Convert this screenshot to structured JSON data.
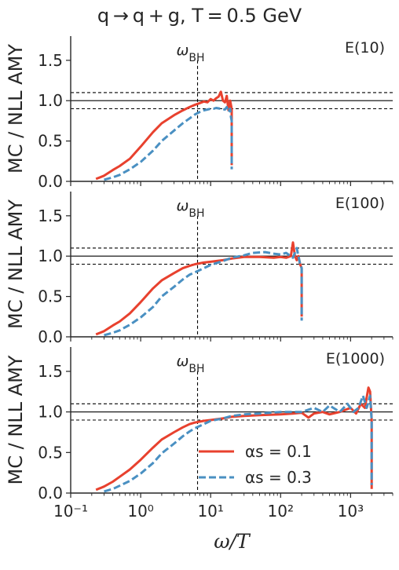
{
  "figure_title": "q → q + g, T = 0.5 GeV",
  "colors": {
    "alpha_0_1": "#e8412e",
    "alpha_0_3": "#4a90c2",
    "axis": "#262626"
  },
  "chart_data": [
    {
      "type": "line",
      "panel_label": "E(10)",
      "vline_label": "ωBH",
      "ylabel": "MC / NLL AMY",
      "xlabel": "",
      "xscale": "log",
      "xlim": [
        0.1,
        4000
      ],
      "ylim": [
        0,
        1.8
      ],
      "yticks": [
        "0.0",
        "0.5",
        "1.0",
        "1.5"
      ],
      "xticks": [],
      "vline_x": 6.5,
      "hlines_solid": [
        1.0
      ],
      "hlines_dashed": [
        0.9,
        1.1
      ],
      "series": [
        {
          "name": "αs = 0.1",
          "style": "solid",
          "x": [
            0.23,
            0.3,
            0.4,
            0.5,
            0.7,
            1.0,
            1.5,
            2.0,
            3.0,
            4.0,
            5.0,
            6.0,
            7.0,
            8.0,
            9.0,
            10.0,
            11.0,
            12.0,
            13.0,
            14.0,
            15.0,
            16.0,
            17.0,
            18.0,
            19.0,
            19.5,
            20.0,
            20.0
          ],
          "y": [
            0.03,
            0.07,
            0.14,
            0.19,
            0.28,
            0.43,
            0.61,
            0.72,
            0.82,
            0.88,
            0.92,
            0.95,
            0.97,
            0.99,
            0.98,
            1.02,
            1.0,
            1.03,
            1.05,
            1.11,
            1.0,
            0.98,
            1.06,
            0.88,
            1.0,
            0.95,
            0.9,
            0.2
          ]
        },
        {
          "name": "αs = 0.3",
          "style": "dashed",
          "x": [
            0.3,
            0.4,
            0.5,
            0.7,
            1.0,
            1.5,
            2.0,
            3.0,
            4.0,
            5.0,
            6.0,
            7.0,
            8.0,
            9.0,
            10.0,
            11.0,
            12.0,
            14.0,
            16.0,
            17.0,
            18.0,
            19.0,
            19.5,
            20.0,
            20.0
          ],
          "y": [
            0.02,
            0.05,
            0.08,
            0.15,
            0.24,
            0.38,
            0.5,
            0.63,
            0.72,
            0.78,
            0.83,
            0.86,
            0.88,
            0.89,
            0.9,
            0.9,
            0.91,
            0.9,
            0.89,
            0.92,
            0.86,
            0.9,
            0.8,
            0.75,
            0.15
          ]
        }
      ]
    },
    {
      "type": "line",
      "panel_label": "E(100)",
      "vline_label": "ωBH",
      "ylabel": "MC / NLL AMY",
      "xlabel": "",
      "xscale": "log",
      "xlim": [
        0.1,
        4000
      ],
      "ylim": [
        0,
        1.8
      ],
      "yticks": [
        "0.0",
        "0.5",
        "1.0",
        "1.5"
      ],
      "xticks": [],
      "vline_x": 6.5,
      "hlines_solid": [
        1.0
      ],
      "hlines_dashed": [
        0.9,
        1.1
      ],
      "series": [
        {
          "name": "αs = 0.1",
          "style": "solid",
          "x": [
            0.23,
            0.3,
            0.4,
            0.5,
            0.7,
            1.0,
            1.5,
            2.0,
            3.0,
            4.0,
            5.0,
            6.0,
            8.0,
            10.0,
            15.0,
            20.0,
            30.0,
            50.0,
            80.0,
            100.0,
            120.0,
            140.0,
            150.0,
            160.0,
            170.0,
            180.0,
            190.0,
            200.0,
            200.0
          ],
          "y": [
            0.03,
            0.07,
            0.14,
            0.19,
            0.29,
            0.43,
            0.6,
            0.7,
            0.79,
            0.85,
            0.88,
            0.9,
            0.92,
            0.93,
            0.95,
            0.97,
            0.99,
            0.99,
            0.98,
            0.99,
            0.98,
            1.0,
            1.17,
            1.0,
            0.95,
            1.0,
            0.9,
            0.85,
            0.25
          ]
        },
        {
          "name": "αs = 0.3",
          "style": "dashed",
          "x": [
            0.3,
            0.4,
            0.5,
            0.7,
            1.0,
            1.5,
            2.0,
            3.0,
            4.0,
            5.0,
            6.0,
            8.0,
            10.0,
            15.0,
            20.0,
            30.0,
            40.0,
            60.0,
            80.0,
            100.0,
            120.0,
            150.0,
            170.0,
            190.0,
            200.0,
            200.0
          ],
          "y": [
            0.02,
            0.05,
            0.08,
            0.15,
            0.24,
            0.37,
            0.5,
            0.62,
            0.71,
            0.77,
            0.8,
            0.85,
            0.89,
            0.94,
            0.98,
            1.01,
            1.04,
            1.05,
            1.03,
            1.02,
            1.04,
            0.98,
            1.1,
            0.9,
            0.85,
            0.2
          ]
        }
      ]
    },
    {
      "type": "line",
      "panel_label": "E(1000)",
      "vline_label": "ωBH",
      "ylabel": "MC / NLL AMY",
      "xlabel": "ω/T",
      "xscale": "log",
      "xlim": [
        0.1,
        4000
      ],
      "ylim": [
        0,
        1.8
      ],
      "yticks": [
        "0.0",
        "0.5",
        "1.0",
        "1.5"
      ],
      "xticks": [
        "10⁻¹",
        "10⁰",
        "10¹",
        "10²",
        "10³"
      ],
      "vline_x": 6.5,
      "hlines_solid": [
        1.0
      ],
      "hlines_dashed": [
        0.9,
        1.1
      ],
      "series": [
        {
          "name": "αs = 0.1",
          "style": "solid",
          "x": [
            0.23,
            0.3,
            0.4,
            0.5,
            0.7,
            1.0,
            1.5,
            2.0,
            3.0,
            4.0,
            5.0,
            6.0,
            8.0,
            10.0,
            15.0,
            20.0,
            30.0,
            50.0,
            100.0,
            150.0,
            200.0,
            250.0,
            300.0,
            400.0,
            500.0,
            700.0,
            1000.0,
            1200.0,
            1400.0,
            1600.0,
            1800.0,
            1900.0,
            2000.0,
            2000.0
          ],
          "y": [
            0.04,
            0.08,
            0.14,
            0.2,
            0.29,
            0.41,
            0.56,
            0.66,
            0.75,
            0.81,
            0.85,
            0.87,
            0.89,
            0.9,
            0.92,
            0.94,
            0.95,
            0.96,
            0.97,
            0.98,
            0.99,
            0.93,
            0.98,
            1.0,
            0.97,
            1.0,
            1.05,
            0.98,
            1.1,
            1.05,
            1.3,
            1.25,
            0.9,
            0.05
          ]
        },
        {
          "name": "αs = 0.3",
          "style": "dashed",
          "x": [
            0.3,
            0.4,
            0.5,
            0.7,
            1.0,
            1.5,
            2.0,
            3.0,
            4.0,
            5.0,
            6.0,
            8.0,
            10.0,
            15.0,
            20.0,
            30.0,
            50.0,
            100.0,
            200.0,
            300.0,
            400.0,
            500.0,
            700.0,
            900.0,
            1100.0,
            1300.0,
            1500.0,
            1700.0,
            1900.0,
            2000.0,
            2000.0
          ],
          "y": [
            0.02,
            0.05,
            0.09,
            0.15,
            0.24,
            0.37,
            0.49,
            0.61,
            0.7,
            0.76,
            0.8,
            0.85,
            0.89,
            0.92,
            0.95,
            0.97,
            0.98,
            1.0,
            1.0,
            1.05,
            1.0,
            1.08,
            1.0,
            1.1,
            1.0,
            1.05,
            1.2,
            1.05,
            1.2,
            0.9,
            0.1
          ]
        }
      ]
    }
  ]
}
